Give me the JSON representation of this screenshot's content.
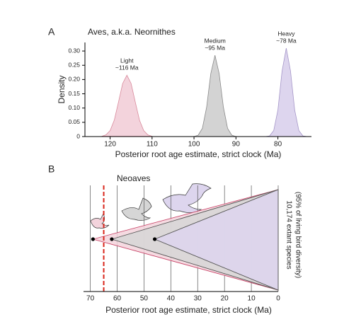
{
  "chart_data": [
    {
      "type": "density",
      "panel": "A",
      "title": "Aves, a.k.a. Neornithes",
      "x_label": "Posterior root age estimate, strict clock (Ma)",
      "y_label": "Density",
      "xlim": [
        126,
        72
      ],
      "xticks": [
        120,
        110,
        100,
        90,
        80
      ],
      "ylim": [
        0,
        0.33
      ],
      "yticks": [
        0,
        0.05,
        {
          "value": 0.1,
          "label": "0.10"
        },
        0.15,
        {
          "value": 0.2,
          "label": "0.20"
        },
        0.25,
        {
          "value": 0.3,
          "label": "0.30"
        }
      ],
      "series": [
        {
          "name": "Light",
          "label": "~116 Ma",
          "color": "#f3d3dc",
          "stroke": "#d98a9c",
          "x": [
            122,
            121,
            120,
            119,
            118,
            117,
            116,
            115,
            114,
            113,
            112,
            111,
            110
          ],
          "values": [
            0.001,
            0.006,
            0.021,
            0.058,
            0.121,
            0.186,
            0.215,
            0.186,
            0.121,
            0.058,
            0.021,
            0.006,
            0.001
          ]
        },
        {
          "name": "Medium",
          "label": "~95 Ma",
          "color": "#d3d3d3",
          "stroke": "#8a8a8a",
          "x": [
            100,
            99,
            98,
            97,
            96,
            95,
            94,
            93,
            92,
            91,
            90
          ],
          "values": [
            0,
            0.005,
            0.029,
            0.103,
            0.221,
            0.285,
            0.221,
            0.103,
            0.029,
            0.005,
            0
          ]
        },
        {
          "name": "Heavy",
          "label": "~78 Ma",
          "color": "#ddd5ee",
          "stroke": "#a596c8",
          "x": [
            83,
            82,
            81,
            80,
            79,
            78,
            77,
            76,
            75,
            74,
            73
          ],
          "values": [
            0,
            0.002,
            0.021,
            0.093,
            0.23,
            0.31,
            0.23,
            0.093,
            0.021,
            0.002,
            0
          ]
        }
      ]
    },
    {
      "type": "cone",
      "panel": "B",
      "title": "Neoaves",
      "x_label": "Posterior root age estimate, strict clock (Ma)",
      "xlim": [
        72,
        0
      ],
      "xticks": [
        70,
        60,
        50,
        40,
        30,
        20,
        10,
        0
      ],
      "grid": true,
      "marker_line": 65,
      "marker_color": "#d9261c",
      "annotation": [
        "10,174 extant species",
        "(95% of living bird diversity)"
      ],
      "series": [
        {
          "color": "#f3d3dc",
          "stroke": "#c9466a",
          "values": [
            69
          ]
        },
        {
          "color": "#d6d6d6",
          "stroke": "#555",
          "values": [
            62
          ]
        },
        {
          "color": "#ddd5ee",
          "stroke": "#555",
          "values": [
            46
          ]
        }
      ]
    }
  ]
}
